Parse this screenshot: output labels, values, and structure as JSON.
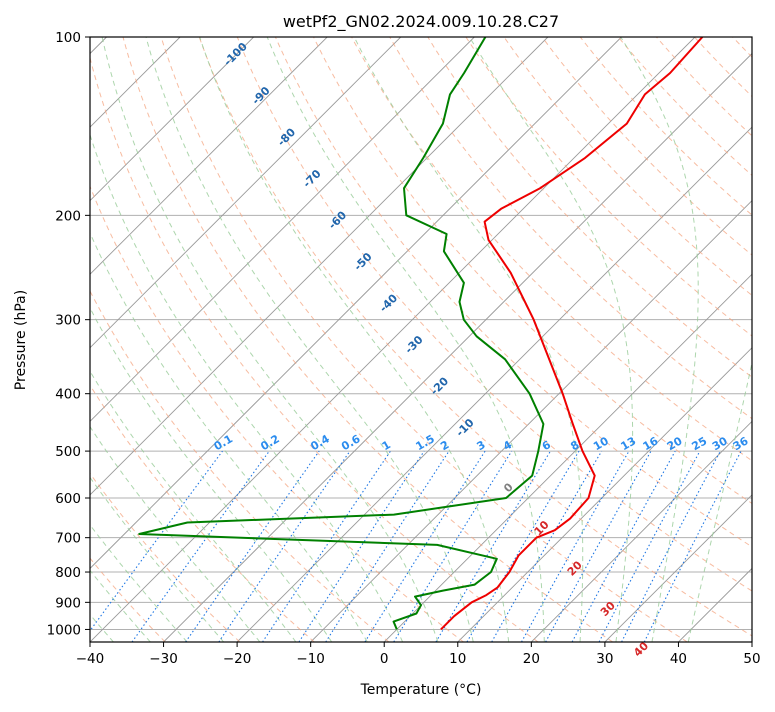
{
  "chart_data": {
    "type": "skew-t",
    "title": "wetPf2_GN02.2024.009.10.28.C27",
    "xlabel": "Temperature (°C)",
    "ylabel": "Pressure (hPa)",
    "xlim": [
      -40,
      50
    ],
    "ylim_hpa": [
      1050,
      100
    ],
    "log_pressure_axis": true,
    "grid": true,
    "x_ticks": [
      -40,
      -30,
      -20,
      -10,
      0,
      10,
      20,
      30,
      40,
      50
    ],
    "x_tick_labels": [
      "−40",
      "−30",
      "−20",
      "−10",
      "0",
      "10",
      "20",
      "30",
      "40",
      "50"
    ],
    "y_ticks": [
      100,
      200,
      300,
      400,
      500,
      600,
      700,
      800,
      900,
      1000
    ],
    "y_tick_labels": [
      "100",
      "200",
      "300",
      "400",
      "500",
      "600",
      "700",
      "800",
      "900",
      "1000"
    ],
    "colors": {
      "temperature": "#ee0000",
      "dewpoint": "#008000",
      "isotherm_grid": "#999999",
      "dry_adiabat": "#f4a582",
      "moist_adiabat": "#99cc99",
      "mixing_ratio": "#1f77e4",
      "moist_label": "#2166ac",
      "isotherm_label_warm": "#d62728",
      "isotherm_label_zero": "#808080"
    },
    "series": [
      {
        "kind": "temperature",
        "color": "#ee0000",
        "points": [
          {
            "p": 1000,
            "t": 6.0
          },
          {
            "p": 950,
            "t": 6.0
          },
          {
            "p": 900,
            "t": 6.5
          },
          {
            "p": 875,
            "t": 7.5
          },
          {
            "p": 850,
            "t": 8.0
          },
          {
            "p": 800,
            "t": 7.5
          },
          {
            "p": 750,
            "t": 6.5
          },
          {
            "p": 700,
            "t": 6.5
          },
          {
            "p": 680,
            "t": 8.0
          },
          {
            "p": 650,
            "t": 8.5
          },
          {
            "p": 600,
            "t": 8.2
          },
          {
            "p": 550,
            "t": 6.0
          },
          {
            "p": 500,
            "t": 1.0
          },
          {
            "p": 450,
            "t": -4.0
          },
          {
            "p": 400,
            "t": -9.5
          },
          {
            "p": 350,
            "t": -16.0
          },
          {
            "p": 300,
            "t": -23.5
          },
          {
            "p": 250,
            "t": -33.0
          },
          {
            "p": 220,
            "t": -40.5
          },
          {
            "p": 205,
            "t": -43.5
          },
          {
            "p": 195,
            "t": -43.0
          },
          {
            "p": 180,
            "t": -40.5
          },
          {
            "p": 160,
            "t": -38.5
          },
          {
            "p": 140,
            "t": -37.5
          },
          {
            "p": 125,
            "t": -39.0
          },
          {
            "p": 115,
            "t": -38.5
          },
          {
            "p": 100,
            "t": -39.0
          }
        ]
      },
      {
        "kind": "dewpoint",
        "color": "#008000",
        "points": [
          {
            "p": 1000,
            "t": 0.0
          },
          {
            "p": 970,
            "t": -1.5
          },
          {
            "p": 940,
            "t": 0.5
          },
          {
            "p": 910,
            "t": 0.0
          },
          {
            "p": 880,
            "t": -2.0
          },
          {
            "p": 860,
            "t": 1.0
          },
          {
            "p": 840,
            "t": 4.5
          },
          {
            "p": 800,
            "t": 5.0
          },
          {
            "p": 760,
            "t": 4.0
          },
          {
            "p": 720,
            "t": -6.0
          },
          {
            "p": 690,
            "t": -48.0
          },
          {
            "p": 660,
            "t": -43.0
          },
          {
            "p": 640,
            "t": -16.0
          },
          {
            "p": 600,
            "t": -3.0
          },
          {
            "p": 550,
            "t": -2.5
          },
          {
            "p": 500,
            "t": -5.0
          },
          {
            "p": 450,
            "t": -8.0
          },
          {
            "p": 400,
            "t": -14.0
          },
          {
            "p": 350,
            "t": -22.0
          },
          {
            "p": 320,
            "t": -29.0
          },
          {
            "p": 300,
            "t": -33.0
          },
          {
            "p": 280,
            "t": -36.0
          },
          {
            "p": 260,
            "t": -38.0
          },
          {
            "p": 230,
            "t": -45.0
          },
          {
            "p": 215,
            "t": -47.0
          },
          {
            "p": 200,
            "t": -55.0
          },
          {
            "p": 180,
            "t": -59.0
          },
          {
            "p": 160,
            "t": -60.5
          },
          {
            "p": 140,
            "t": -62.5
          },
          {
            "p": 125,
            "t": -65.5
          },
          {
            "p": 115,
            "t": -66.5
          },
          {
            "p": 100,
            "t": -68.5
          }
        ]
      }
    ],
    "moist_adiabat_labels": [
      "-100",
      "-90",
      "-80",
      "-70",
      "-60",
      "-50",
      "-40",
      "-30",
      "-20",
      "-10"
    ],
    "mixing_ratio_labels": [
      "0.1",
      "0.2",
      "0.4",
      "0.6",
      "1",
      "1.5",
      "2",
      "3",
      "4",
      "6",
      "8",
      "10",
      "13",
      "16",
      "20",
      "25",
      "30",
      "36"
    ],
    "isotherm_labels": [
      "0",
      "10",
      "20",
      "30",
      "40"
    ]
  }
}
